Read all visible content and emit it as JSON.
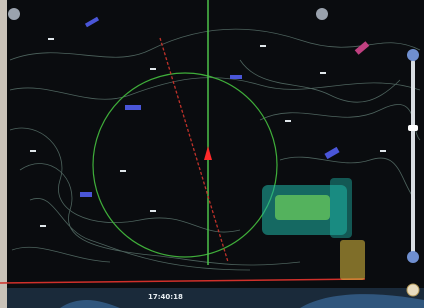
{
  "status": {
    "time": "17:40:18"
  }
}
